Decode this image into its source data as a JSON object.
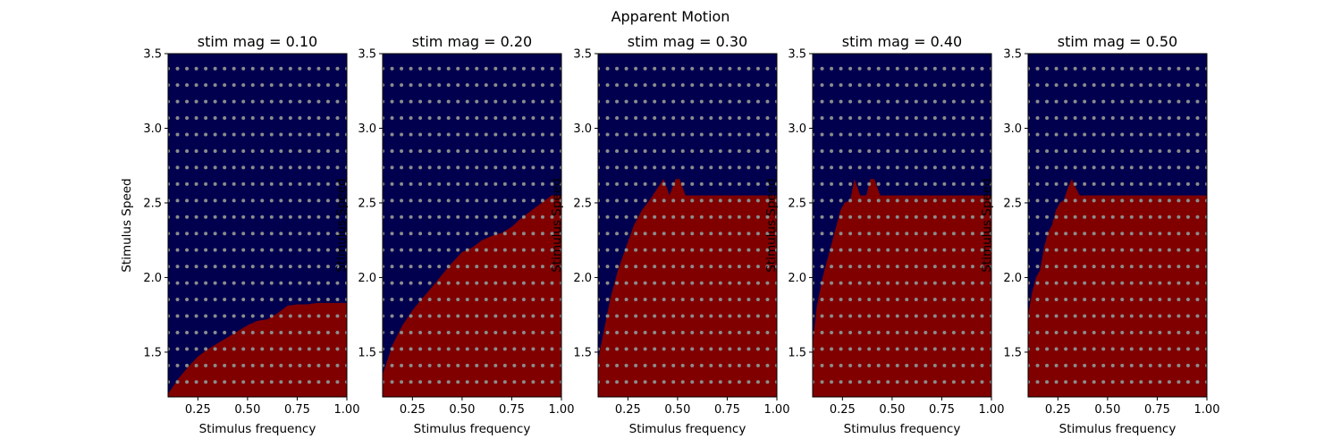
{
  "figure": {
    "title": "Apparent Motion"
  },
  "colors": {
    "blue": "#00004f",
    "red": "#800000",
    "dots": "#8c8c8c",
    "axis": "#000000"
  },
  "chart_data": [
    {
      "type": "heatmap",
      "title": "stim mag = 0.10",
      "xlabel": "Stimulus frequency",
      "ylabel": "Stimulus Speed",
      "xlim": [
        0.1,
        1.0
      ],
      "ylim": [
        1.2,
        3.5
      ],
      "xticks": [
        "0.25",
        "0.50",
        "0.75",
        "1.00"
      ],
      "yticks": [
        "1.5",
        "2.0",
        "2.5",
        "3.0",
        "3.5"
      ],
      "sample_grid": {
        "x_count": 20,
        "y_count": 20,
        "x_range": [
          0.1,
          1.0
        ],
        "y_range": [
          1.3,
          3.4
        ]
      },
      "boundary": {
        "x": [
          0.1,
          0.15,
          0.2,
          0.25,
          0.3,
          0.35,
          0.4,
          0.45,
          0.5,
          0.55,
          0.6,
          0.65,
          0.7,
          0.75,
          0.8,
          0.85,
          0.9,
          0.95,
          1.0
        ],
        "y": [
          1.22,
          1.32,
          1.4,
          1.47,
          1.52,
          1.56,
          1.6,
          1.64,
          1.68,
          1.71,
          1.72,
          1.76,
          1.81,
          1.82,
          1.82,
          1.83,
          1.83,
          1.83,
          1.83
        ]
      },
      "regions": {
        "above": "blue",
        "below": "red"
      }
    },
    {
      "type": "heatmap",
      "title": "stim mag = 0.20",
      "xlabel": "Stimulus frequency",
      "ylabel": "Stimulus Speed",
      "xlim": [
        0.1,
        1.0
      ],
      "ylim": [
        1.2,
        3.5
      ],
      "xticks": [
        "0.25",
        "0.50",
        "0.75",
        "1.00"
      ],
      "yticks": [
        "1.5",
        "2.0",
        "2.5",
        "3.0",
        "3.5"
      ],
      "sample_grid": {
        "x_count": 20,
        "y_count": 20,
        "x_range": [
          0.1,
          1.0
        ],
        "y_range": [
          1.3,
          3.4
        ]
      },
      "boundary": {
        "x": [
          0.1,
          0.15,
          0.2,
          0.25,
          0.3,
          0.35,
          0.4,
          0.45,
          0.5,
          0.55,
          0.6,
          0.65,
          0.7,
          0.75,
          0.8,
          0.85,
          0.9,
          0.95,
          1.0
        ],
        "y": [
          1.35,
          1.55,
          1.68,
          1.78,
          1.86,
          1.94,
          2.02,
          2.1,
          2.17,
          2.2,
          2.25,
          2.28,
          2.3,
          2.34,
          2.4,
          2.45,
          2.5,
          2.55,
          2.55
        ]
      },
      "regions": {
        "above": "blue",
        "below": "red"
      }
    },
    {
      "type": "heatmap",
      "title": "stim mag = 0.30",
      "xlabel": "Stimulus frequency",
      "ylabel": "Stimulus Speed",
      "xlim": [
        0.1,
        1.0
      ],
      "ylim": [
        1.2,
        3.5
      ],
      "xticks": [
        "0.25",
        "0.50",
        "0.75",
        "1.00"
      ],
      "yticks": [
        "1.5",
        "2.0",
        "2.5",
        "3.0",
        "3.5"
      ],
      "sample_grid": {
        "x_count": 20,
        "y_count": 20,
        "x_range": [
          0.1,
          1.0
        ],
        "y_range": [
          1.3,
          3.4
        ]
      },
      "boundary": {
        "x": [
          0.1,
          0.13,
          0.16,
          0.2,
          0.24,
          0.28,
          0.32,
          0.36,
          0.4,
          0.43,
          0.46,
          0.49,
          0.51,
          0.54,
          0.6,
          0.7,
          0.8,
          0.9,
          1.0
        ],
        "y": [
          1.45,
          1.65,
          1.85,
          2.05,
          2.2,
          2.35,
          2.45,
          2.52,
          2.6,
          2.66,
          2.55,
          2.66,
          2.66,
          2.55,
          2.55,
          2.55,
          2.55,
          2.55,
          2.55
        ]
      },
      "regions": {
        "above": "blue",
        "below": "red"
      }
    },
    {
      "type": "heatmap",
      "title": "stim mag = 0.40",
      "xlabel": "Stimulus frequency",
      "ylabel": "Stimulus Speed",
      "xlim": [
        0.1,
        1.0
      ],
      "ylim": [
        1.2,
        3.5
      ],
      "xticks": [
        "0.25",
        "0.50",
        "0.75",
        "1.00"
      ],
      "yticks": [
        "1.5",
        "2.0",
        "2.5",
        "3.0",
        "3.5"
      ],
      "sample_grid": {
        "x_count": 20,
        "y_count": 20,
        "x_range": [
          0.1,
          1.0
        ],
        "y_range": [
          1.3,
          3.4
        ]
      },
      "boundary": {
        "x": [
          0.1,
          0.12,
          0.15,
          0.18,
          0.21,
          0.24,
          0.26,
          0.29,
          0.31,
          0.34,
          0.37,
          0.39,
          0.41,
          0.44,
          0.5,
          0.6,
          0.8,
          1.0
        ],
        "y": [
          1.55,
          1.8,
          2.0,
          2.15,
          2.3,
          2.45,
          2.5,
          2.52,
          2.66,
          2.55,
          2.55,
          2.66,
          2.66,
          2.55,
          2.55,
          2.55,
          2.55,
          2.55
        ]
      },
      "regions": {
        "above": "blue",
        "below": "red"
      }
    },
    {
      "type": "heatmap",
      "title": "stim mag = 0.50",
      "xlabel": "Stimulus frequency",
      "ylabel": "Stimulus Speed",
      "xlim": [
        0.1,
        1.0
      ],
      "ylim": [
        1.2,
        3.5
      ],
      "xticks": [
        "0.25",
        "0.50",
        "0.75",
        "1.00"
      ],
      "yticks": [
        "1.5",
        "2.0",
        "2.5",
        "3.0",
        "3.5"
      ],
      "sample_grid": {
        "x_count": 20,
        "y_count": 20,
        "x_range": [
          0.1,
          1.0
        ],
        "y_range": [
          1.3,
          3.4
        ]
      },
      "boundary": {
        "x": [
          0.1,
          0.12,
          0.14,
          0.16,
          0.18,
          0.2,
          0.22,
          0.24,
          0.26,
          0.28,
          0.3,
          0.32,
          0.34,
          0.36,
          0.4,
          0.6,
          0.8,
          1.0
        ],
        "y": [
          1.75,
          1.9,
          2.0,
          2.05,
          2.2,
          2.3,
          2.35,
          2.45,
          2.5,
          2.52,
          2.6,
          2.66,
          2.6,
          2.55,
          2.55,
          2.55,
          2.55,
          2.55
        ]
      },
      "regions": {
        "above": "blue",
        "below": "red"
      }
    }
  ]
}
